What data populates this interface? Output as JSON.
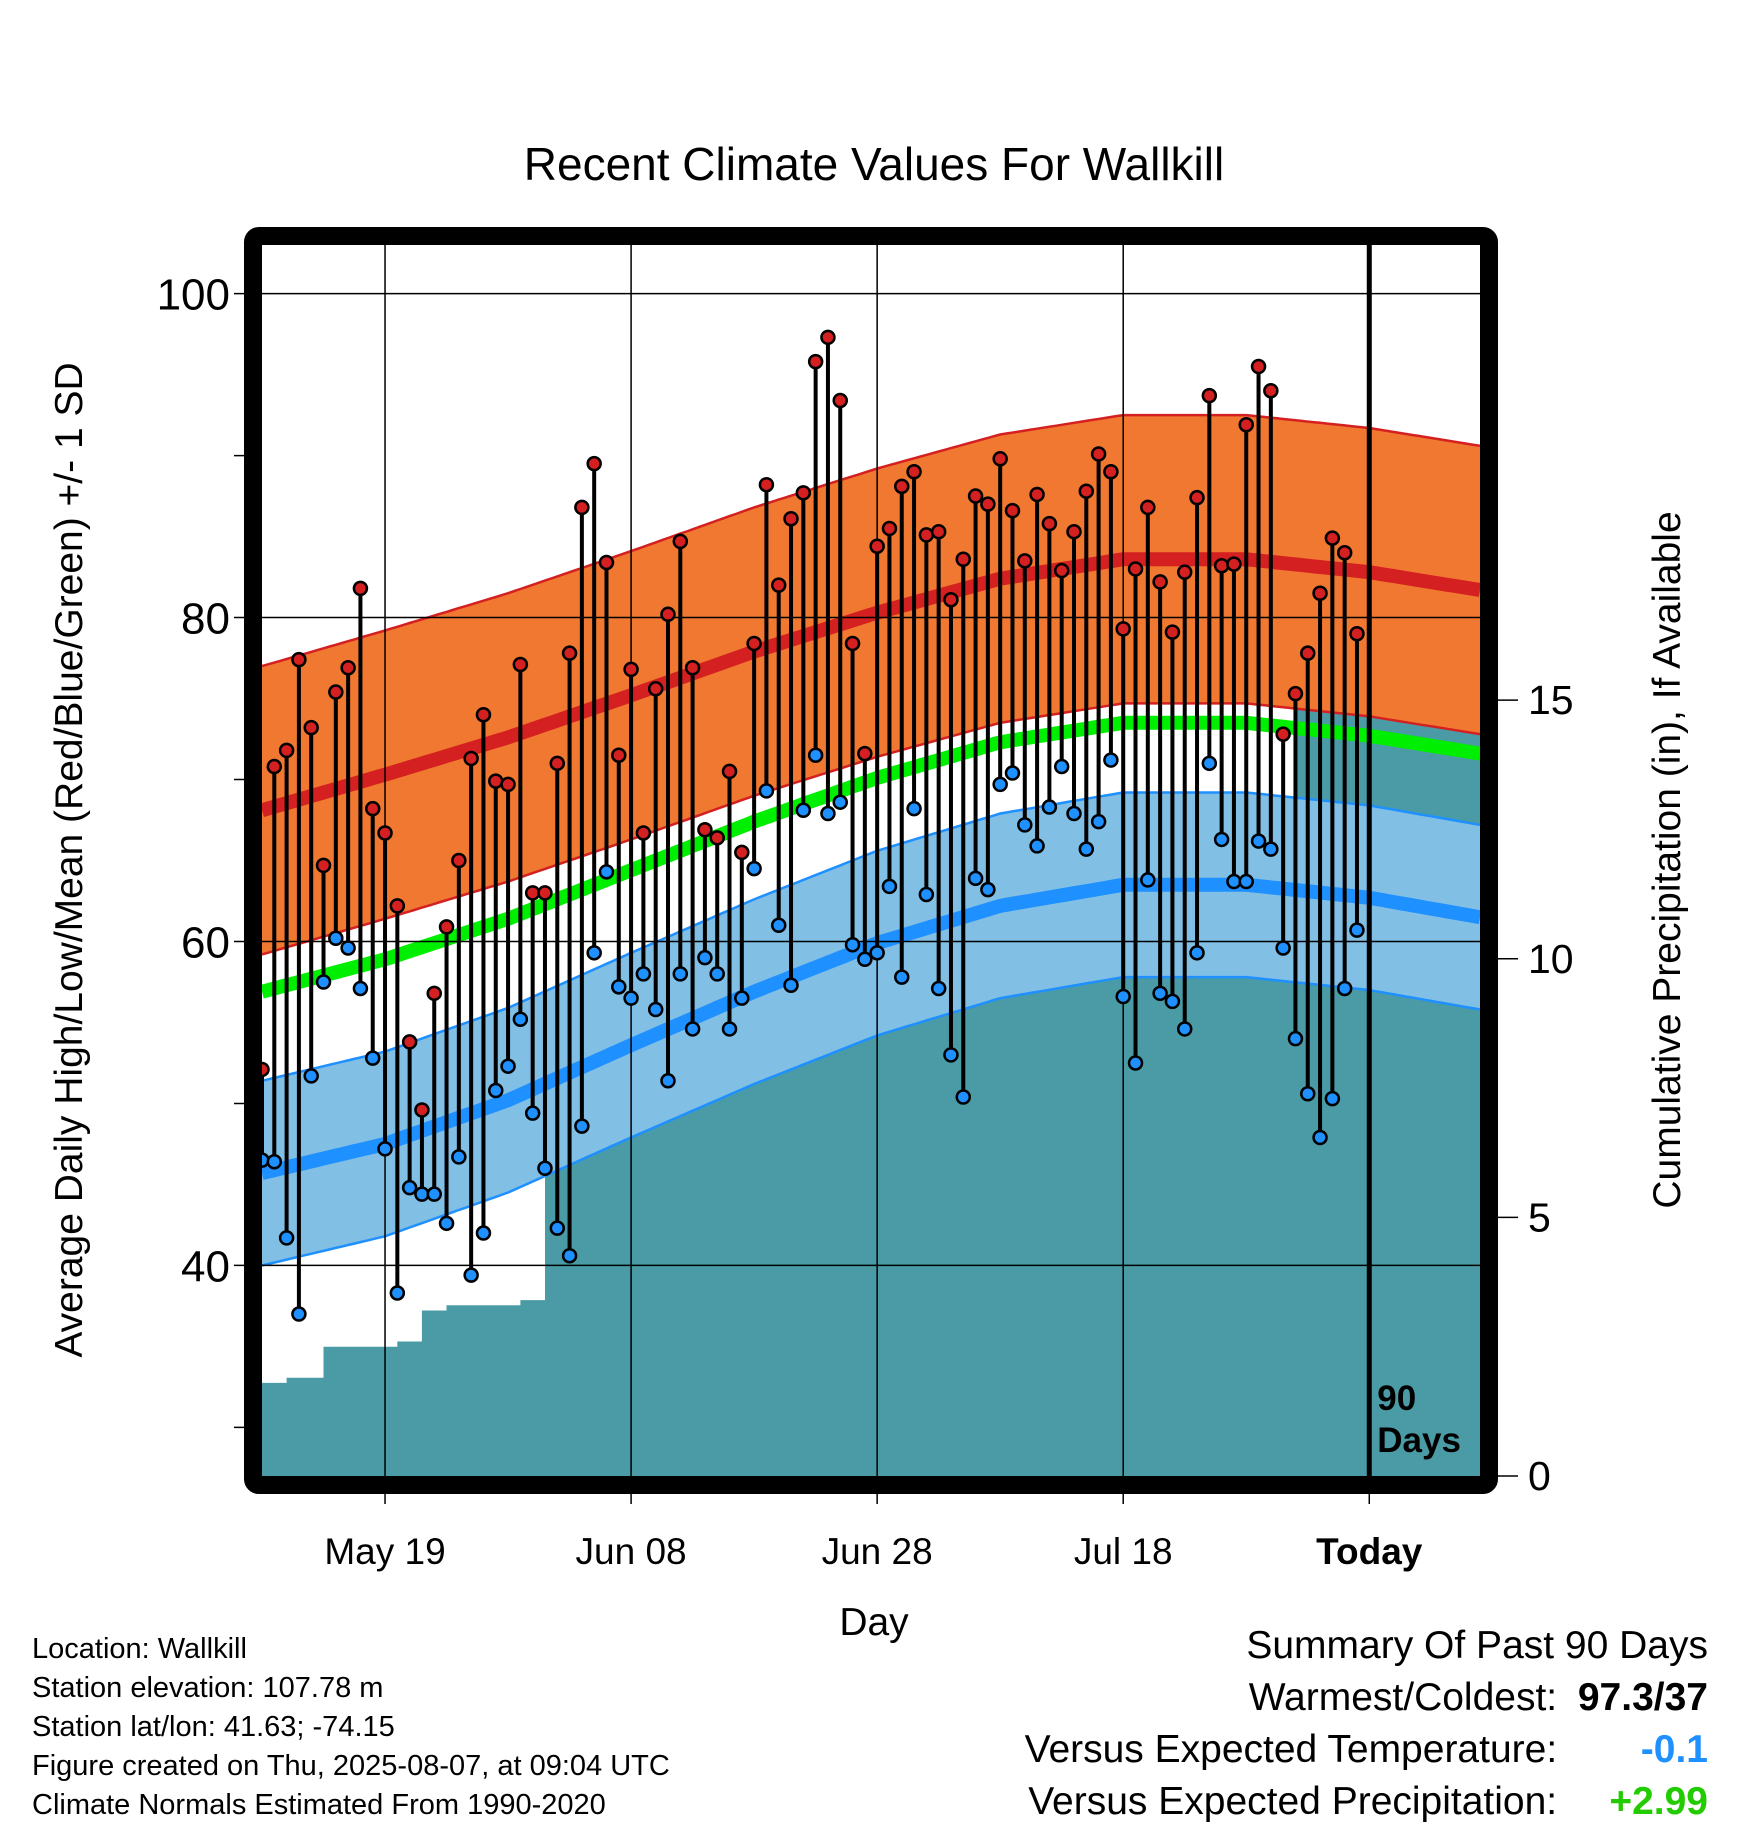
{
  "chart_data": {
    "type": "line",
    "title": "Recent Climate Values For Wallkill",
    "xlabel": "Day",
    "ylabel": "Average Daily High/Low/Mean (Red/Blue/Green) +/- 1 SD",
    "y2label": "Cumulative Precipitation (in), If Available",
    "x_ticks": [
      "May 19",
      "Jun 08",
      "Jun 28",
      "Jul 18",
      "Today"
    ],
    "y_ticks": [
      "100",
      "80",
      "60",
      "40"
    ],
    "y2_ticks": [
      "15",
      "10",
      "5",
      "0"
    ],
    "ylim": [
      27,
      103
    ],
    "y2lim": [
      0,
      23.8
    ],
    "xlim": [
      -90,
      9
    ],
    "x_tick_days": [
      -80,
      -60,
      -40,
      -20,
      0
    ],
    "today_marker_label_1": "90",
    "today_marker_label_2": "Days",
    "daily_high": [
      52.1,
      70.8,
      71.8,
      77.4,
      73.2,
      64.7,
      75.4,
      76.9,
      81.8,
      68.2,
      66.7,
      62.2,
      53.8,
      49.6,
      56.8,
      60.9,
      65.0,
      71.3,
      74.0,
      69.9,
      69.7,
      77.1,
      63.0,
      63.0,
      71.0,
      77.8,
      86.8,
      89.5,
      83.4,
      71.5,
      76.8,
      66.7,
      75.6,
      80.2,
      84.7,
      76.9,
      66.9,
      66.4,
      70.5,
      65.5,
      78.4,
      88.2,
      82.0,
      86.1,
      87.7,
      95.8,
      97.3,
      93.4,
      78.4,
      71.6,
      84.4,
      85.5,
      88.1,
      89.0,
      85.1,
      85.3,
      81.1,
      83.6,
      87.5,
      87.0,
      89.8,
      86.6,
      83.5,
      87.6,
      85.8,
      82.9,
      85.3,
      87.8,
      90.1,
      89.0,
      79.3,
      83.0,
      86.8,
      82.2,
      79.1,
      82.8,
      87.4,
      93.7,
      83.2,
      83.3,
      91.9,
      95.5,
      94.0,
      72.8,
      75.3,
      77.8,
      81.5,
      84.9,
      84.0,
      79.0
    ],
    "daily_low": [
      46.5,
      46.4,
      41.7,
      37.0,
      51.7,
      57.5,
      60.2,
      59.6,
      57.1,
      52.8,
      47.2,
      38.3,
      44.8,
      44.4,
      44.4,
      42.6,
      46.7,
      39.4,
      42.0,
      50.8,
      52.3,
      55.2,
      49.4,
      46.0,
      42.3,
      40.6,
      48.6,
      59.3,
      64.3,
      57.2,
      56.5,
      58.0,
      55.8,
      51.4,
      58.0,
      54.6,
      59.0,
      58.0,
      54.6,
      56.5,
      64.5,
      69.3,
      61.0,
      57.3,
      68.1,
      71.5,
      67.9,
      68.6,
      59.8,
      58.9,
      59.3,
      63.4,
      57.8,
      68.2,
      62.9,
      57.1,
      53.0,
      50.4,
      63.9,
      63.2,
      69.7,
      70.4,
      67.2,
      65.9,
      68.3,
      70.8,
      67.9,
      65.7,
      67.4,
      71.2,
      56.6,
      52.5,
      63.8,
      56.8,
      56.3,
      54.6,
      59.3,
      71.0,
      66.3,
      63.7,
      63.7,
      66.2,
      65.7,
      59.6,
      54.0,
      50.6,
      47.9,
      50.3,
      57.1,
      60.7
    ],
    "normal_high": {
      "days": [
        -90,
        -80,
        -70,
        -60,
        -50,
        -40,
        -30,
        -20,
        -10,
        0,
        9
      ],
      "values": [
        68.1,
        70.3,
        72.6,
        75.2,
        77.9,
        80.3,
        82.4,
        83.6,
        83.6,
        82.8,
        81.7
      ]
    },
    "normal_low": {
      "days": [
        -90,
        -80,
        -70,
        -60,
        -50,
        -40,
        -30,
        -20,
        -10,
        0,
        9
      ],
      "values": [
        45.7,
        47.5,
        50.2,
        53.6,
        56.9,
        59.9,
        62.2,
        63.5,
        63.5,
        62.7,
        61.5
      ]
    },
    "normal_mean": {
      "days": [
        -90,
        -80,
        -70,
        -60,
        -50,
        -40,
        -30,
        -20,
        -10,
        0,
        9
      ],
      "values": [
        56.9,
        58.9,
        61.4,
        64.4,
        67.4,
        70.1,
        72.3,
        73.5,
        73.5,
        72.7,
        71.6
      ]
    },
    "sd_high": 8.9,
    "sd_low": 5.7,
    "cumulative_precip": {
      "days": [
        -90,
        -88,
        -86,
        -85,
        -79,
        -77,
        -75,
        -72,
        -69,
        -67,
        -66,
        -64,
        -63,
        -61,
        -60,
        -58,
        -54,
        -53,
        -50,
        -49,
        -45,
        -40,
        -38,
        -37,
        -36,
        -34,
        -30,
        -29,
        -27,
        -21,
        -19,
        -12,
        -11,
        -8,
        -7,
        -6,
        -5,
        9
      ],
      "values": [
        1.8,
        1.9,
        1.9,
        2.5,
        2.6,
        3.2,
        3.3,
        3.3,
        3.4,
        7.0,
        7.0,
        7.0,
        7.4,
        8.5,
        8.6,
        9.3,
        9.4,
        10.8,
        10.9,
        11.0,
        11.1,
        11.5,
        11.6,
        12.1,
        12.3,
        12.4,
        12.5,
        12.6,
        12.6,
        12.7,
        12.8,
        12.8,
        13.0,
        13.1,
        13.1,
        15.0,
        14.9,
        14.9
      ]
    },
    "colors": {
      "high_band": "#f07830",
      "high_line": "#d42020",
      "low_band": "#82bfe4",
      "low_line": "#1e90ff",
      "mean_line": "#00ee00",
      "precip": "#4a9ba6",
      "high_point": "#d42020",
      "low_point": "#1e90ff"
    }
  },
  "info": {
    "location": "Location: Wallkill",
    "elevation": "Station elevation: 107.78 m",
    "latlon": "Station lat/lon: 41.63; -74.15",
    "created": "Figure created on Thu, 2025-08-07, at 09:04 UTC",
    "normals": "Climate Normals Estimated From 1990-2020"
  },
  "summary": {
    "title": "Summary Of Past 90 Days",
    "warm_label": "Warmest/Coldest:",
    "warm_value_high": "97.3",
    "warm_sep": "/",
    "warm_value_low": "37",
    "temp_label": "Versus Expected Temperature:",
    "temp_value": "-0.1",
    "precip_label": "Versus Expected Precipitation:",
    "precip_value": "+2.99"
  }
}
